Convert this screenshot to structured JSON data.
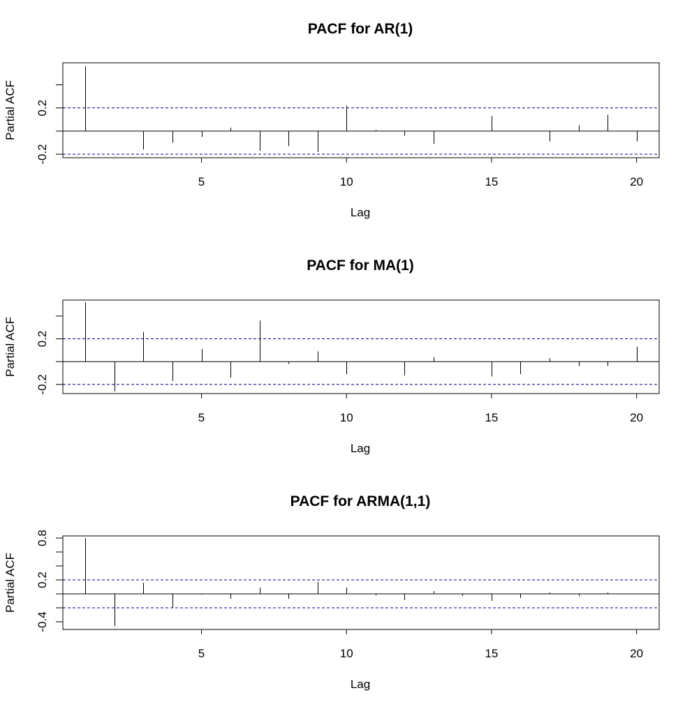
{
  "chart_data": [
    {
      "type": "bar",
      "subtype": "pacf-spikes",
      "title": "PACF for AR(1)",
      "xlabel": "Lag",
      "ylabel": "Partial ACF",
      "xlim": [
        0.22,
        20.78
      ],
      "ylim": [
        -0.23,
        0.59
      ],
      "x_ticks": [
        "5",
        "10",
        "15",
        "20"
      ],
      "y_ticks": [
        "-0.2",
        "0.2"
      ],
      "y_minor_ticks": [
        -0.2,
        0,
        0.2,
        0.4
      ],
      "confidence_bound": 0.2,
      "lags": [
        1,
        2,
        3,
        4,
        5,
        6,
        7,
        8,
        9,
        10,
        11,
        12,
        13,
        14,
        15,
        16,
        17,
        18,
        19,
        20
      ],
      "values": [
        0.56,
        0.0,
        -0.16,
        -0.1,
        -0.05,
        0.03,
        -0.17,
        -0.13,
        -0.18,
        0.22,
        0.01,
        -0.04,
        -0.11,
        0.0,
        0.13,
        0.0,
        -0.09,
        0.05,
        0.14,
        -0.09
      ],
      "grid": false
    },
    {
      "type": "bar",
      "subtype": "pacf-spikes",
      "title": "PACF for MA(1)",
      "xlabel": "Lag",
      "ylabel": "Partial ACF",
      "xlim": [
        0.22,
        20.78
      ],
      "ylim": [
        -0.28,
        0.54
      ],
      "x_ticks": [
        "5",
        "10",
        "15",
        "20"
      ],
      "y_ticks": [
        "-0.2",
        "0.2"
      ],
      "y_minor_ticks": [
        -0.2,
        0,
        0.2,
        0.4
      ],
      "confidence_bound": 0.2,
      "lags": [
        1,
        2,
        3,
        4,
        5,
        6,
        7,
        8,
        9,
        10,
        11,
        12,
        13,
        14,
        15,
        16,
        17,
        18,
        19,
        20
      ],
      "values": [
        0.52,
        -0.26,
        0.26,
        -0.17,
        0.11,
        -0.14,
        0.36,
        -0.02,
        0.09,
        -0.11,
        0.0,
        -0.12,
        0.04,
        0.0,
        -0.13,
        -0.11,
        0.03,
        -0.04,
        -0.04,
        0.13
      ],
      "grid": false
    },
    {
      "type": "bar",
      "subtype": "pacf-spikes",
      "title": "PACF for ARMA(1,1)",
      "xlabel": "Lag",
      "ylabel": "Partial ACF",
      "xlim": [
        0.22,
        20.78
      ],
      "ylim": [
        -0.51,
        0.83
      ],
      "x_ticks": [
        "5",
        "10",
        "15",
        "20"
      ],
      "y_ticks": [
        "-0.4",
        "0.2",
        "0.8"
      ],
      "y_minor_ticks": [
        -0.4,
        -0.2,
        0,
        0.2,
        0.4,
        0.6,
        0.8
      ],
      "confidence_bound": 0.2,
      "lags": [
        1,
        2,
        3,
        4,
        5,
        6,
        7,
        8,
        9,
        10,
        11,
        12,
        13,
        14,
        15,
        16,
        17,
        18,
        19,
        20
      ],
      "values": [
        0.8,
        -0.46,
        0.16,
        -0.2,
        -0.01,
        -0.07,
        0.09,
        -0.07,
        0.17,
        0.09,
        -0.02,
        -0.09,
        0.04,
        -0.03,
        -0.1,
        -0.06,
        0.02,
        -0.03,
        0.02,
        0.0
      ],
      "grid": false
    }
  ],
  "style": {
    "spike_color": "#000000",
    "bound_color": "#00008b",
    "axis_color": "#000000",
    "background": "#ffffff"
  }
}
